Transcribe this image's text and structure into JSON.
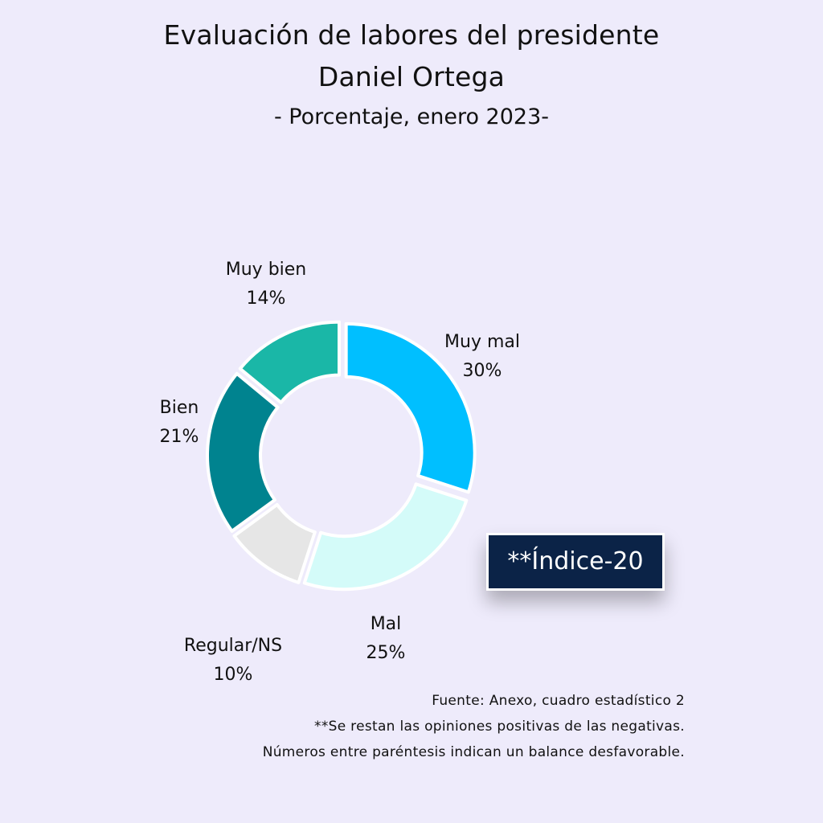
{
  "header": {
    "title_line1": "Evaluación de labores del presidente",
    "title_line2": "Daniel Ortega",
    "subtitle": "- Porcentaje, enero 2023-"
  },
  "chart_data": {
    "type": "pie",
    "donut": true,
    "start": "top",
    "direction": "clockwise",
    "slices": [
      {
        "label": "Muy mal",
        "value": 30,
        "value_label": "30%",
        "color": "#00bfff"
      },
      {
        "label": "Mal",
        "value": 25,
        "value_label": "25%",
        "color": "#d4fbf9"
      },
      {
        "label": "Regular/NS",
        "value": 10,
        "value_label": "10%",
        "color": "#e6e6e6"
      },
      {
        "label": "Bien",
        "value": 21,
        "value_label": "21%",
        "color": "#00838f"
      },
      {
        "label": "Muy bien",
        "value": 14,
        "value_label": "14%",
        "color": "#1ab7a7"
      }
    ]
  },
  "index_badge": {
    "text": "**Índice-20",
    "background": "#0b2347"
  },
  "notes": {
    "source": "Fuente: Anexo, cuadro estadístico 2",
    "note1": "**Se restan las opiniones positivas de las negativas.",
    "note2": "Números entre paréntesis indican un balance desfavorable."
  },
  "colors": {
    "background": "#eeebfb"
  }
}
